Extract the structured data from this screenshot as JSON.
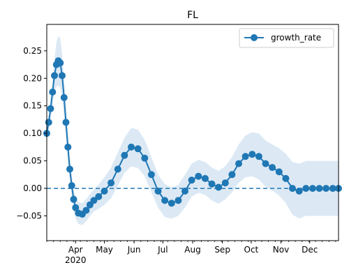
{
  "chart_data": {
    "type": "line",
    "title": "FL",
    "xlabel": "",
    "ylabel": "",
    "ylim": [
      -0.095,
      0.298
    ],
    "x_start": "2020-03-02",
    "x_end": "2020-12-31",
    "grid": false,
    "legend": {
      "position": "top-right",
      "entries": [
        "growth_rate"
      ]
    },
    "zero_line": {
      "y": 0,
      "style": "dashed",
      "color": "#1f77b4"
    },
    "colors": {
      "series": "#1f77b4",
      "band": "#dce9f5"
    },
    "y_ticks": [
      -0.05,
      0.0,
      0.05,
      0.1,
      0.15,
      0.2,
      0.25
    ],
    "y_tick_labels": [
      "−0.05",
      "0.00",
      "0.05",
      "0.10",
      "0.15",
      "0.20",
      "0.25"
    ],
    "x_major_ticks": [
      {
        "date": "2020-04-01",
        "label": "Apr",
        "sublabel": "2020"
      },
      {
        "date": "2020-05-01",
        "label": "May"
      },
      {
        "date": "2020-06-01",
        "label": "Jun"
      },
      {
        "date": "2020-07-01",
        "label": "Jul"
      },
      {
        "date": "2020-08-01",
        "label": "Aug"
      },
      {
        "date": "2020-09-01",
        "label": "Sep"
      },
      {
        "date": "2020-10-01",
        "label": "Oct"
      },
      {
        "date": "2020-11-01",
        "label": "Nov"
      },
      {
        "date": "2020-12-01",
        "label": "Dec"
      }
    ],
    "series": [
      {
        "name": "growth_rate",
        "marker": "circle",
        "x": [
          "2020-03-02",
          "2020-03-04",
          "2020-03-06",
          "2020-03-08",
          "2020-03-10",
          "2020-03-12",
          "2020-03-14",
          "2020-03-16",
          "2020-03-18",
          "2020-03-20",
          "2020-03-22",
          "2020-03-24",
          "2020-03-26",
          "2020-03-28",
          "2020-03-30",
          "2020-04-01",
          "2020-04-04",
          "2020-04-08",
          "2020-04-12",
          "2020-04-16",
          "2020-04-20",
          "2020-04-25",
          "2020-05-01",
          "2020-05-08",
          "2020-05-15",
          "2020-05-22",
          "2020-05-29",
          "2020-06-05",
          "2020-06-12",
          "2020-06-19",
          "2020-06-26",
          "2020-07-03",
          "2020-07-10",
          "2020-07-17",
          "2020-07-24",
          "2020-07-31",
          "2020-08-07",
          "2020-08-14",
          "2020-08-21",
          "2020-08-28",
          "2020-09-04",
          "2020-09-11",
          "2020-09-18",
          "2020-09-25",
          "2020-10-02",
          "2020-10-09",
          "2020-10-16",
          "2020-10-23",
          "2020-10-30",
          "2020-11-06",
          "2020-11-13",
          "2020-11-20",
          "2020-11-27",
          "2020-12-04",
          "2020-12-11",
          "2020-12-18",
          "2020-12-25",
          "2020-12-31"
        ],
        "y": [
          0.1,
          0.12,
          0.145,
          0.175,
          0.205,
          0.225,
          0.232,
          0.228,
          0.205,
          0.165,
          0.12,
          0.075,
          0.035,
          0.005,
          -0.02,
          -0.035,
          -0.045,
          -0.047,
          -0.04,
          -0.03,
          -0.022,
          -0.015,
          -0.005,
          0.01,
          0.035,
          0.06,
          0.075,
          0.072,
          0.055,
          0.025,
          -0.005,
          -0.022,
          -0.027,
          -0.022,
          -0.005,
          0.015,
          0.022,
          0.018,
          0.008,
          0.002,
          0.01,
          0.025,
          0.045,
          0.058,
          0.062,
          0.058,
          0.045,
          0.038,
          0.03,
          0.018,
          0.0,
          -0.005,
          0.0,
          0.0,
          0.0,
          0.0,
          0.0,
          0.0
        ],
        "band_halfwidth": [
          0.01,
          0.015,
          0.02,
          0.025,
          0.03,
          0.04,
          0.045,
          0.045,
          0.04,
          0.035,
          0.03,
          0.025,
          0.02,
          0.02,
          0.02,
          0.02,
          0.02,
          0.02,
          0.02,
          0.02,
          0.02,
          0.022,
          0.025,
          0.028,
          0.03,
          0.032,
          0.035,
          0.035,
          0.033,
          0.032,
          0.03,
          0.03,
          0.028,
          0.028,
          0.03,
          0.03,
          0.03,
          0.03,
          0.03,
          0.03,
          0.03,
          0.032,
          0.035,
          0.038,
          0.04,
          0.042,
          0.042,
          0.042,
          0.043,
          0.045,
          0.048,
          0.05,
          0.05,
          0.05,
          0.05,
          0.05,
          0.05,
          0.05
        ]
      }
    ]
  }
}
